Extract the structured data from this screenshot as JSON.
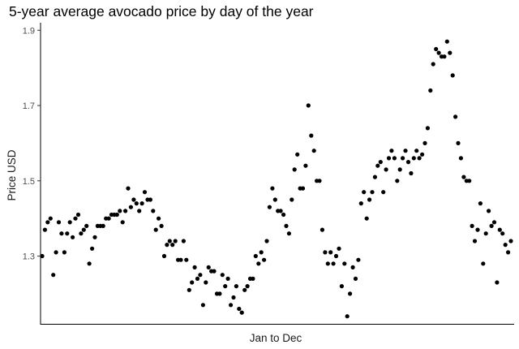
{
  "chart_data": {
    "type": "scatter",
    "title": "5-year average avocado price by day of the year",
    "xlabel": "Jan to Dec",
    "ylabel": "Price USD",
    "ylim": [
      1.12,
      1.92
    ],
    "yticks": [
      1.3,
      1.5,
      1.7,
      1.9
    ],
    "y_tick_labels": [
      "1.3",
      "1.5",
      "1.7",
      "1.9"
    ],
    "x_tick_labels": [],
    "grid": false,
    "point_color": "#000000",
    "series": [
      {
        "values": [
          1.3,
          1.37,
          1.39,
          1.4,
          1.25,
          1.31,
          1.39,
          1.36,
          1.31,
          1.36,
          1.39,
          1.35,
          1.4,
          1.41,
          1.36,
          1.37,
          1.38,
          1.28,
          1.32,
          1.35,
          1.38,
          1.38,
          1.38,
          1.4,
          1.4,
          1.41,
          1.41,
          1.41,
          1.42,
          1.39,
          1.42,
          1.48,
          1.43,
          1.45,
          1.44,
          1.42,
          1.44,
          1.47,
          1.45,
          1.45,
          1.42,
          1.37,
          1.4,
          1.38,
          1.3,
          1.33,
          1.34,
          1.33,
          1.34,
          1.29,
          1.29,
          1.34,
          1.29,
          1.21,
          1.23,
          1.27,
          1.24,
          1.25,
          1.17,
          1.23,
          1.27,
          1.26,
          1.26,
          1.2,
          1.2,
          1.25,
          1.22,
          1.24,
          1.17,
          1.19,
          1.22,
          1.16,
          1.15,
          1.21,
          1.22,
          1.24,
          1.24,
          1.3,
          1.28,
          1.31,
          1.29,
          1.34,
          1.43,
          1.48,
          1.45,
          1.42,
          1.42,
          1.41,
          1.38,
          1.36,
          1.45,
          1.53,
          1.57,
          1.48,
          1.48,
          1.54,
          1.7,
          1.62,
          1.58,
          1.5,
          1.5,
          1.37,
          1.31,
          1.28,
          1.31,
          1.28,
          1.3,
          1.32,
          1.22,
          1.28,
          1.14,
          1.2,
          1.27,
          1.24,
          1.29,
          1.44,
          1.47,
          1.4,
          1.45,
          1.47,
          1.51,
          1.54,
          1.55,
          1.47,
          1.53,
          1.56,
          1.58,
          1.56,
          1.5,
          1.53,
          1.56,
          1.58,
          1.55,
          1.52,
          1.56,
          1.58,
          1.56,
          1.57,
          1.6,
          1.64,
          1.74,
          1.81,
          1.85,
          1.84,
          1.83,
          1.83,
          1.87,
          1.84,
          1.78,
          1.67,
          1.6,
          1.56,
          1.51,
          1.5,
          1.5,
          1.38,
          1.34,
          1.37,
          1.44,
          1.28,
          1.36,
          1.42,
          1.38,
          1.39,
          1.23,
          1.37,
          1.36,
          1.33,
          1.31,
          1.34
        ]
      }
    ]
  }
}
